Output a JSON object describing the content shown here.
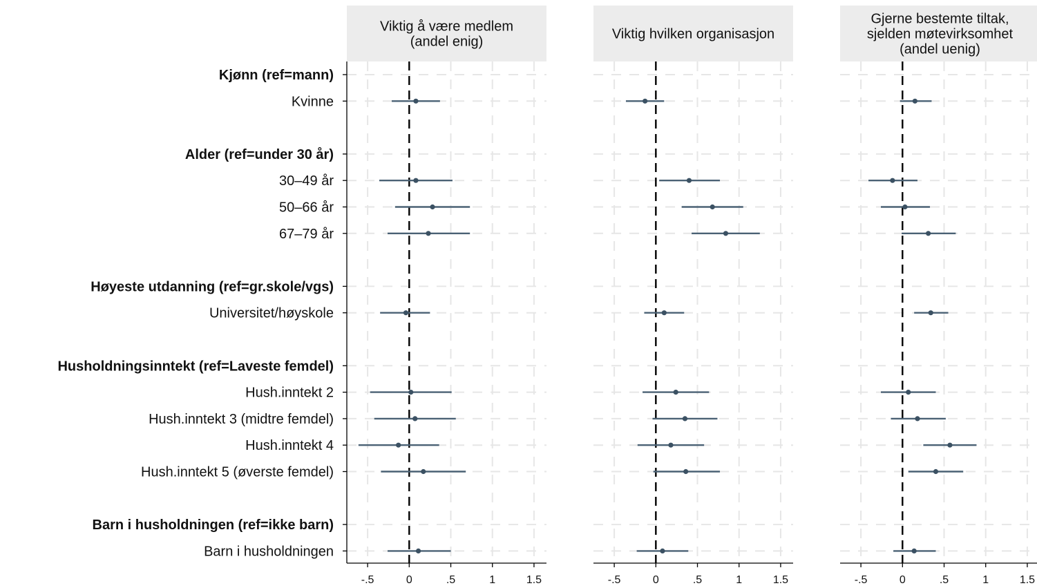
{
  "chart_data": {
    "type": "scatter",
    "style": "coefficient-plot",
    "groups": [
      {
        "label": "Kjønn (ref=mann)",
        "items": [
          "Kvinne"
        ]
      },
      {
        "label": "Alder (ref=under 30 år)",
        "items": [
          "30–49 år",
          "50–66 år",
          "67–79 år"
        ]
      },
      {
        "label": "Høyeste utdanning (ref=gr.skole/vgs)",
        "items": [
          "Universitet/høyskole"
        ]
      },
      {
        "label": "Husholdningsinntekt (ref=Laveste femdel)",
        "items": [
          "Hush.inntekt 2",
          "Hush.inntekt 3 (midtre femdel)",
          "Hush.inntekt 4",
          "Hush.inntekt 5 (øverste femdel)"
        ]
      },
      {
        "label": "Barn i husholdningen (ref=ikke barn)",
        "items": [
          "Barn i husholdningen"
        ]
      }
    ],
    "xlim": [
      -0.75,
      1.65
    ],
    "xticks": [
      -0.5,
      0,
      0.5,
      1,
      1.5
    ],
    "xtick_labels": [
      "-.5",
      "0",
      ".5",
      "1",
      "1.5"
    ],
    "reference_line": 0,
    "grid": true,
    "colors": {
      "marker": "#3b5163",
      "ci": "#4a6174",
      "strip": "#ececec",
      "grid": "#e6e6e6"
    },
    "panels": [
      {
        "title_lines": [
          "Viktig å være medlem",
          "(andel enig)"
        ],
        "series": [
          {
            "estimate": 0.08,
            "ci": [
              -0.21,
              0.37
            ]
          },
          {
            "estimate": 0.08,
            "ci": [
              -0.36,
              0.52
            ]
          },
          {
            "estimate": 0.28,
            "ci": [
              -0.17,
              0.73
            ]
          },
          {
            "estimate": 0.23,
            "ci": [
              -0.26,
              0.73
            ]
          },
          {
            "estimate": -0.04,
            "ci": [
              -0.35,
              0.25
            ]
          },
          {
            "estimate": 0.02,
            "ci": [
              -0.47,
              0.51
            ]
          },
          {
            "estimate": 0.07,
            "ci": [
              -0.42,
              0.56
            ]
          },
          {
            "estimate": -0.13,
            "ci": [
              -0.61,
              0.36
            ]
          },
          {
            "estimate": 0.17,
            "ci": [
              -0.34,
              0.68
            ]
          },
          {
            "estimate": 0.11,
            "ci": [
              -0.26,
              0.5
            ]
          }
        ]
      },
      {
        "title_lines": [
          "Viktig hvilken organisasjon"
        ],
        "series": [
          {
            "estimate": -0.13,
            "ci": [
              -0.36,
              0.1
            ]
          },
          {
            "estimate": 0.4,
            "ci": [
              0.04,
              0.77
            ]
          },
          {
            "estimate": 0.68,
            "ci": [
              0.31,
              1.05
            ]
          },
          {
            "estimate": 0.84,
            "ci": [
              0.43,
              1.25
            ]
          },
          {
            "estimate": 0.1,
            "ci": [
              -0.14,
              0.34
            ]
          },
          {
            "estimate": 0.24,
            "ci": [
              -0.16,
              0.64
            ]
          },
          {
            "estimate": 0.35,
            "ci": [
              -0.04,
              0.74
            ]
          },
          {
            "estimate": 0.18,
            "ci": [
              -0.22,
              0.58
            ]
          },
          {
            "estimate": 0.36,
            "ci": [
              -0.03,
              0.77
            ]
          },
          {
            "estimate": 0.08,
            "ci": [
              -0.23,
              0.39
            ]
          }
        ]
      },
      {
        "title_lines": [
          "Gjerne bestemte tiltak,",
          "sjelden møtevirksomhet",
          "(andel uenig)"
        ],
        "series": [
          {
            "estimate": 0.15,
            "ci": [
              -0.03,
              0.35
            ]
          },
          {
            "estimate": -0.12,
            "ci": [
              -0.41,
              0.18
            ]
          },
          {
            "estimate": 0.03,
            "ci": [
              -0.26,
              0.33
            ]
          },
          {
            "estimate": 0.31,
            "ci": [
              -0.01,
              0.64
            ]
          },
          {
            "estimate": 0.34,
            "ci": [
              0.14,
              0.55
            ]
          },
          {
            "estimate": 0.07,
            "ci": [
              -0.26,
              0.4
            ]
          },
          {
            "estimate": 0.18,
            "ci": [
              -0.14,
              0.52
            ]
          },
          {
            "estimate": 0.57,
            "ci": [
              0.25,
              0.89
            ]
          },
          {
            "estimate": 0.4,
            "ci": [
              0.07,
              0.73
            ]
          },
          {
            "estimate": 0.14,
            "ci": [
              -0.11,
              0.4
            ]
          }
        ]
      }
    ]
  }
}
